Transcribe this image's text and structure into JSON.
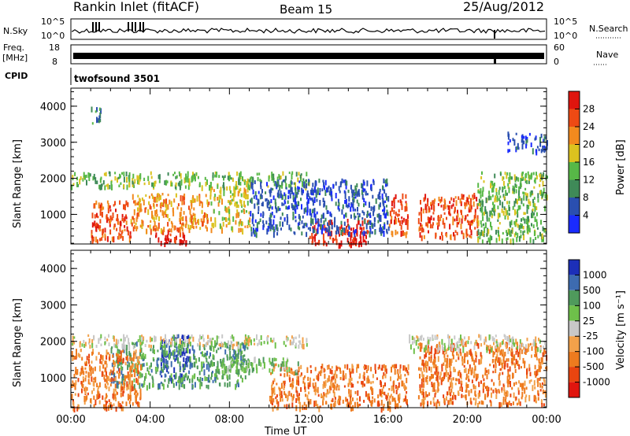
{
  "header": {
    "station": "Rankin Inlet (fitACF)",
    "beam": "Beam 15",
    "date": "25/Aug/2012"
  },
  "labels": {
    "nsky": "N.Sky",
    "nsearch": "N.Search",
    "freq_line1": "Freq.",
    "freq_line2": "[MHz]",
    "nave": "Nave",
    "cpid": "CPID",
    "cpid_value": "twofsound 3501",
    "time_axis": "Time UT",
    "slant_range_1": "Slant Range [km]",
    "slant_range_2": "Slant Range [km]"
  },
  "small_ticks": {
    "nsky_top": "10^5",
    "nsky_bottom": "10^0",
    "nsearch_top": "10^5",
    "nsearch_bottom": "10^0",
    "freq_top": "18",
    "freq_bottom": "8",
    "nave_top": "60",
    "nave_bottom": "0"
  },
  "colors": {
    "power": [
      "#1a2bff",
      "#2a4fb0",
      "#3f8a58",
      "#57b847",
      "#dbc21f",
      "#f28a1e",
      "#ee4a14",
      "#e0150e"
    ],
    "velocity": [
      "#1c2fb8",
      "#3d6bb0",
      "#4f9a5c",
      "#6ec04a",
      "#c8c8c8",
      "#f2a14a",
      "#ee7b1e",
      "#e94510",
      "#e0150e"
    ]
  },
  "chart_data": [
    {
      "type": "heatmap",
      "name": "power",
      "x_ticks": [
        "00:00",
        "04:00",
        "08:00",
        "12:00",
        "16:00",
        "20:00",
        "00:00"
      ],
      "xlim_hours": [
        0,
        24
      ],
      "y_ticks": [
        1000,
        2000,
        3000,
        4000
      ],
      "ylim": [
        180,
        4500
      ],
      "ylabel": "Slant Range [km]",
      "colorbar": {
        "label": "Power [dB]",
        "ticks": [
          4,
          8,
          12,
          16,
          20,
          24,
          28
        ],
        "range": [
          0,
          32
        ]
      },
      "bands": [
        {
          "t0": 4.2,
          "t1": 5.8,
          "r0": 200,
          "r1": 600,
          "level": 7
        },
        {
          "t0": 1.0,
          "t1": 3.0,
          "r0": 300,
          "r1": 1400,
          "level": 6
        },
        {
          "t0": 3.0,
          "t1": 7.0,
          "r0": 600,
          "r1": 1600,
          "level": 5
        },
        {
          "t0": 7.0,
          "t1": 9.0,
          "r0": 600,
          "r1": 1800,
          "level": 4
        },
        {
          "t0": 12.0,
          "t1": 15.0,
          "r0": 200,
          "r1": 900,
          "level": 7
        },
        {
          "t0": 16.0,
          "t1": 17.0,
          "r0": 500,
          "r1": 1600,
          "level": 6
        },
        {
          "t0": 17.5,
          "t1": 20.5,
          "r0": 400,
          "r1": 1600,
          "level": 6
        },
        {
          "t0": 20.5,
          "t1": 24.0,
          "r0": 300,
          "r1": 2200,
          "level": 3
        },
        {
          "t0": 0.0,
          "t1": 12.0,
          "r0": 1800,
          "r1": 2200,
          "level": 3
        },
        {
          "t0": 9.0,
          "t1": 16.0,
          "r0": 500,
          "r1": 2000,
          "level": 1
        },
        {
          "t0": 1.0,
          "t1": 1.5,
          "r0": 3500,
          "r1": 4000,
          "level": 2
        },
        {
          "t0": 22.0,
          "t1": 24.0,
          "r0": 2800,
          "r1": 3300,
          "level": 1
        }
      ]
    },
    {
      "type": "heatmap",
      "name": "velocity",
      "x_ticks": [
        "00:00",
        "04:00",
        "08:00",
        "12:00",
        "16:00",
        "20:00",
        "00:00"
      ],
      "xlim_hours": [
        0,
        24
      ],
      "y_ticks": [
        1000,
        2000,
        3000,
        4000
      ],
      "ylim": [
        180,
        4500
      ],
      "ylabel": "Slant Range [km]",
      "colorbar": {
        "label": "Velocity [m s^-1]",
        "ticks": [
          "1000",
          "500",
          "100",
          "25",
          "-25",
          "-100",
          "-500",
          "-1000"
        ]
      },
      "bands": [
        {
          "t0": 4.5,
          "t1": 6.0,
          "r0": 1000,
          "r1": 2200,
          "level": 0
        },
        {
          "t0": 2.0,
          "t1": 9.0,
          "r0": 800,
          "r1": 2000,
          "level": 2
        },
        {
          "t0": 0.0,
          "t1": 12.0,
          "r0": 1900,
          "r1": 2200,
          "level": 4
        },
        {
          "t0": 0.0,
          "t1": 3.5,
          "r0": 200,
          "r1": 1800,
          "level": 6
        },
        {
          "t0": 10.0,
          "t1": 17.0,
          "r0": 200,
          "r1": 1400,
          "level": 6
        },
        {
          "t0": 17.5,
          "t1": 24.0,
          "r0": 300,
          "r1": 2000,
          "level": 6
        },
        {
          "t0": 17.0,
          "t1": 24.0,
          "r0": 1800,
          "r1": 2200,
          "level": 4
        },
        {
          "t0": 7.5,
          "t1": 11.5,
          "r0": 1200,
          "r1": 1600,
          "level": 3
        }
      ]
    }
  ]
}
